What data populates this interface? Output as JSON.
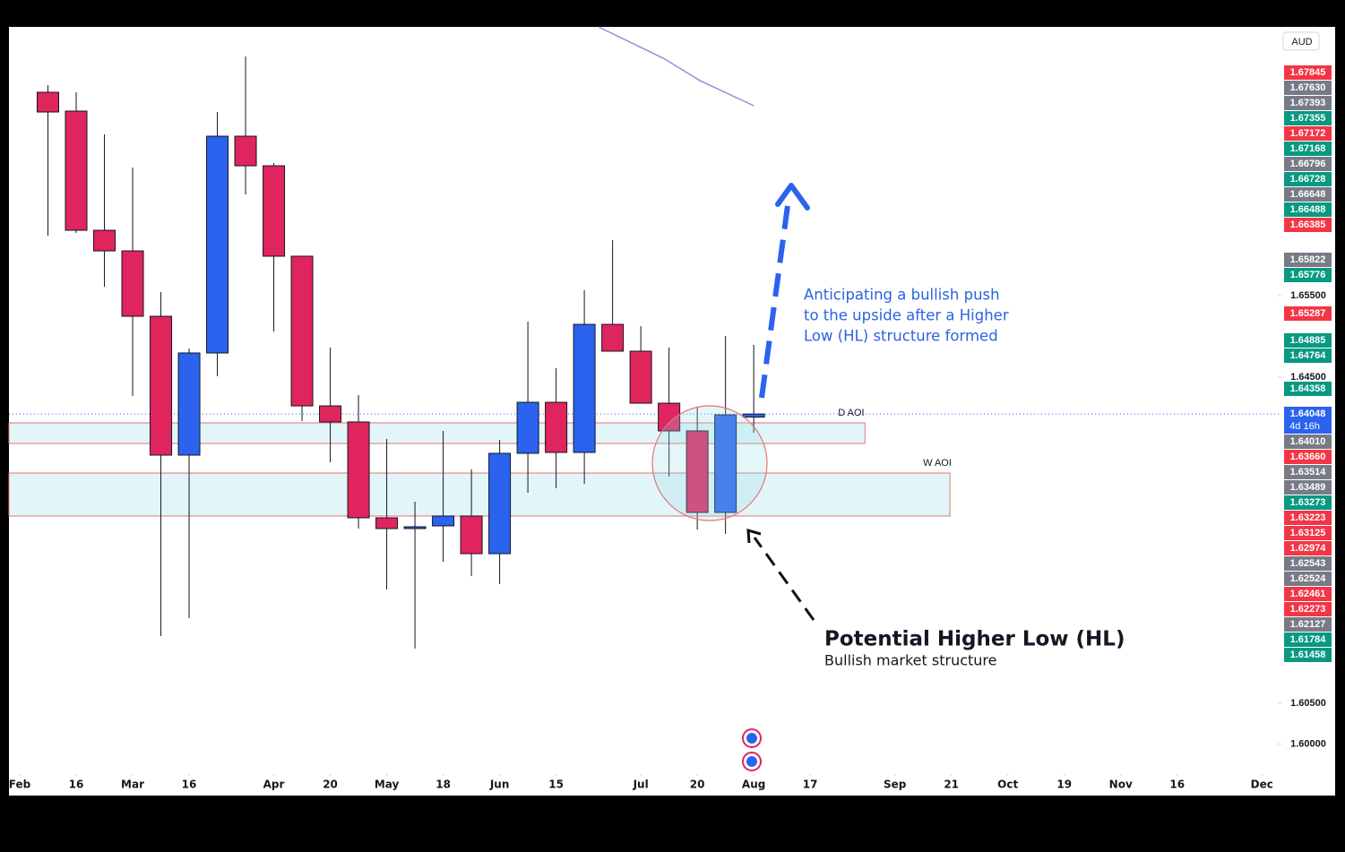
{
  "chart_data": {
    "type": "candlestick",
    "currency": "AUD",
    "x": [
      1,
      2,
      3,
      4,
      5,
      6,
      7,
      8,
      9,
      10,
      11,
      12,
      13,
      14,
      15,
      16,
      17,
      18,
      19,
      20,
      21,
      22,
      23,
      24,
      25,
      26
    ],
    "open": [
      1.67995,
      1.67764,
      1.66302,
      1.66049,
      1.65247,
      1.63544,
      1.64797,
      1.67456,
      1.67093,
      1.65984,
      1.64148,
      1.63951,
      1.62775,
      1.62643,
      1.62676,
      1.62797,
      1.62335,
      1.63566,
      1.64192,
      1.63577,
      1.65148,
      1.64819,
      1.64181,
      1.63841,
      1.62841,
      1.6401
    ],
    "high": [
      1.68082,
      1.67995,
      1.67478,
      1.67071,
      1.65544,
      1.64852,
      1.67753,
      1.68434,
      1.67126,
      1.65984,
      1.64863,
      1.6428,
      1.63742,
      1.62973,
      1.63841,
      1.63368,
      1.63731,
      1.65181,
      1.6461,
      1.65566,
      1.66181,
      1.65126,
      1.64863,
      1.64126,
      1.65005,
      1.64896
    ],
    "low": [
      1.66236,
      1.66269,
      1.6561,
      1.64269,
      1.61324,
      1.61544,
      1.64511,
      1.66742,
      1.6506,
      1.63962,
      1.63456,
      1.62643,
      1.61896,
      1.6117,
      1.62236,
      1.6206,
      1.61962,
      1.63082,
      1.63137,
      1.63192,
      1.64819,
      1.64181,
      1.6328,
      1.62632,
      1.62577,
      1.63819
    ],
    "close": [
      1.67753,
      1.66302,
      1.66049,
      1.65247,
      1.63544,
      1.64797,
      1.67456,
      1.67093,
      1.65984,
      1.64148,
      1.63951,
      1.62775,
      1.62643,
      1.62665,
      1.62797,
      1.62335,
      1.63566,
      1.64192,
      1.63577,
      1.65148,
      1.64819,
      1.64181,
      1.63841,
      1.62841,
      1.64038,
      1.64048
    ],
    "up_color": "#2b63ef",
    "down_color": "#e0245e",
    "xlim": [
      -0.381,
      44.5
    ],
    "ylim": [
      1.59368,
      1.68797
    ],
    "xticks": [
      {
        "value": 0,
        "label": "Feb"
      },
      {
        "value": 2,
        "label": "16"
      },
      {
        "value": 4,
        "label": "Mar"
      },
      {
        "value": 6,
        "label": "16"
      },
      {
        "value": 9,
        "label": "Apr"
      },
      {
        "value": 11,
        "label": "20"
      },
      {
        "value": 13,
        "label": "May"
      },
      {
        "value": 15,
        "label": "18"
      },
      {
        "value": 17,
        "label": "Jun"
      },
      {
        "value": 19,
        "label": "15"
      },
      {
        "value": 22,
        "label": "Jul"
      },
      {
        "value": 24,
        "label": "20"
      },
      {
        "value": 26,
        "label": "Aug"
      },
      {
        "value": 28,
        "label": "17"
      },
      {
        "value": 31,
        "label": "Sep"
      },
      {
        "value": 33,
        "label": "21"
      },
      {
        "value": 35,
        "label": "Oct"
      },
      {
        "value": 37,
        "label": "19"
      },
      {
        "value": 39,
        "label": "Nov"
      },
      {
        "value": 41,
        "label": "16"
      },
      {
        "value": 44,
        "label": "Dec"
      }
    ],
    "yticks": [
      {
        "value": 1.655,
        "label": "1.65500"
      },
      {
        "value": 1.645,
        "label": "1.64500"
      },
      {
        "value": 1.605,
        "label": "1.60500"
      },
      {
        "value": 1.6,
        "label": "1.60000"
      }
    ],
    "last_price": {
      "value": 1.64048,
      "label": "1.64048",
      "countdown": "4d 16h",
      "color": "#2b63ef"
    },
    "price_labels": [
      {
        "value": 1.67845,
        "label": "1.67845",
        "color": "#f23645"
      },
      {
        "value": 1.6763,
        "label": "1.67630",
        "color": "#787b86"
      },
      {
        "value": 1.67393,
        "label": "1.67393",
        "color": "#787b86"
      },
      {
        "value": 1.67355,
        "label": "1.67355",
        "color": "#089981"
      },
      {
        "value": 1.67172,
        "label": "1.67172",
        "color": "#f23645"
      },
      {
        "value": 1.67168,
        "label": "1.67168",
        "color": "#089981"
      },
      {
        "value": 1.66796,
        "label": "1.66796",
        "color": "#787b86"
      },
      {
        "value": 1.66728,
        "label": "1.66728",
        "color": "#089981"
      },
      {
        "value": 1.66648,
        "label": "1.66648",
        "color": "#787b86"
      },
      {
        "value": 1.66488,
        "label": "1.66488",
        "color": "#089981"
      },
      {
        "value": 1.66385,
        "label": "1.66385",
        "color": "#f23645"
      },
      {
        "value": 1.65822,
        "label": "1.65822",
        "color": "#787b86"
      },
      {
        "value": 1.65776,
        "label": "1.65776",
        "color": "#089981"
      },
      {
        "value": 1.65287,
        "label": "1.65287",
        "color": "#f23645"
      },
      {
        "value": 1.64885,
        "label": "1.64885",
        "color": "#089981"
      },
      {
        "value": 1.64764,
        "label": "1.64764",
        "color": "#089981"
      },
      {
        "value": 1.64358,
        "label": "1.64358",
        "color": "#089981"
      },
      {
        "value": 1.6401,
        "label": "1.64010",
        "color": "#787b86"
      },
      {
        "value": 1.6366,
        "label": "1.63660",
        "color": "#f23645"
      },
      {
        "value": 1.63514,
        "label": "1.63514",
        "color": "#787b86"
      },
      {
        "value": 1.63489,
        "label": "1.63489",
        "color": "#787b86"
      },
      {
        "value": 1.63273,
        "label": "1.63273",
        "color": "#089981"
      },
      {
        "value": 1.63223,
        "label": "1.63223",
        "color": "#f23645"
      },
      {
        "value": 1.63125,
        "label": "1.63125",
        "color": "#f23645"
      },
      {
        "value": 1.62974,
        "label": "1.62974",
        "color": "#f23645"
      },
      {
        "value": 1.62543,
        "label": "1.62543",
        "color": "#787b86"
      },
      {
        "value": 1.62524,
        "label": "1.62524",
        "color": "#787b86"
      },
      {
        "value": 1.62461,
        "label": "1.62461",
        "color": "#f23645"
      },
      {
        "value": 1.62273,
        "label": "1.62273",
        "color": "#f23645"
      },
      {
        "value": 1.62127,
        "label": "1.62127",
        "color": "#787b86"
      },
      {
        "value": 1.61784,
        "label": "1.61784",
        "color": "#089981"
      },
      {
        "value": 1.61458,
        "label": "1.61458",
        "color": "#089981"
      }
    ],
    "ma_line": {
      "color": "#8f8fd8",
      "x": [
        20.5,
        22.8,
        24.1,
        26
      ],
      "values": [
        1.68797,
        1.68412,
        1.68137,
        1.6783
      ]
    },
    "zones": [
      {
        "label": "D AOI",
        "top": 1.6394,
        "bottom": 1.63687,
        "x_end": 29.94
      },
      {
        "label": "W AOI",
        "top": 1.63324,
        "bottom": 1.62797,
        "x_end": 32.95
      }
    ],
    "annotation_lines": [
      "Anticipating a bullish push",
      "to the upside after a Higher",
      "Low (HL) structure formed"
    ],
    "callout_title": "Potential Higher Low (HL)",
    "callout_subtitle": "Bullish market structure"
  }
}
